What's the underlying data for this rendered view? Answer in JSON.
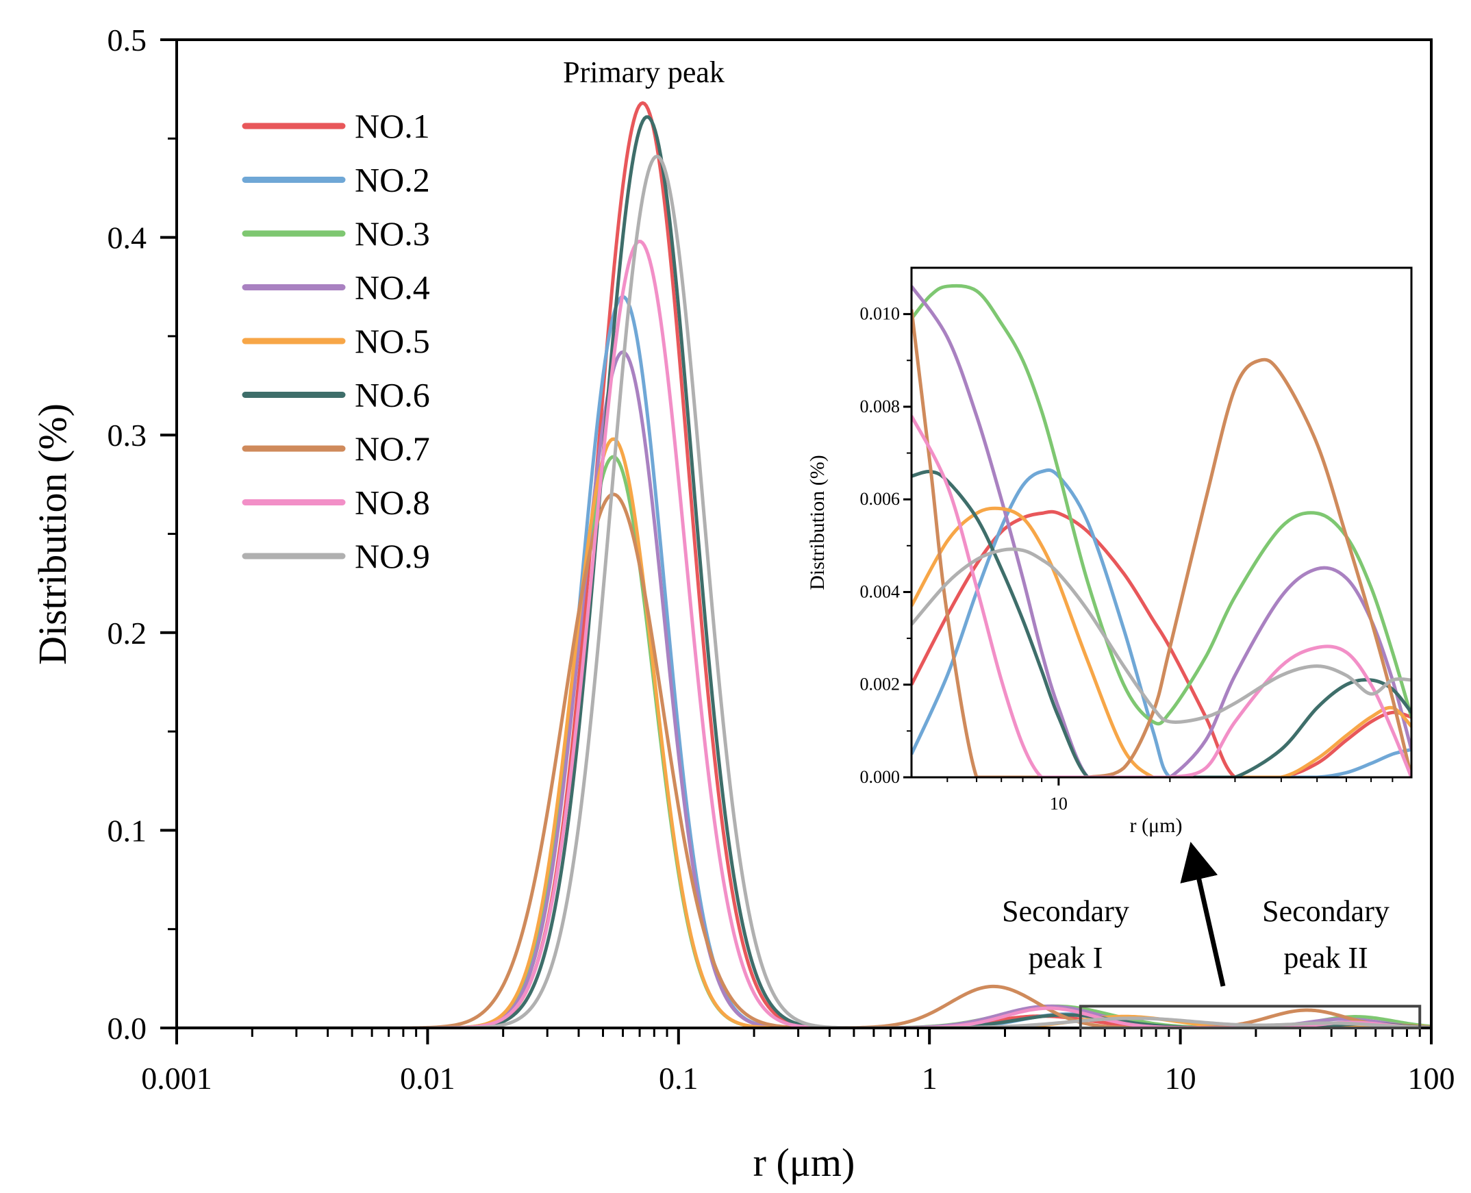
{
  "chart_data": [
    {
      "type": "line",
      "role": "main",
      "title": "",
      "xlabel": "r (μm)",
      "ylabel": "Distribution (%)",
      "xscale": "log",
      "xlim": [
        0.001,
        100
      ],
      "ylim": [
        0,
        0.5
      ],
      "xticks": [
        0.001,
        0.01,
        0.1,
        1,
        10,
        100
      ],
      "xtick_labels": [
        "0.001",
        "0.01",
        "0.1",
        "1",
        "10",
        "100"
      ],
      "yticks": [
        0,
        0.1,
        0.2,
        0.3,
        0.4,
        0.5
      ],
      "ytick_labels": [
        "0.0",
        "0.1",
        "0.2",
        "0.3",
        "0.4",
        "0.5"
      ],
      "grid": false,
      "legend_position": "top-left",
      "annotations": [
        {
          "text": "Primary peak"
        },
        {
          "text": "Secondary",
          "text2": "peak I"
        },
        {
          "text": "Secondary",
          "text2": "peak II"
        }
      ],
      "zoom_box": {
        "x": [
          4,
          90
        ],
        "y": [
          0,
          0.011
        ]
      },
      "series": [
        {
          "name": "NO.1",
          "color": "#e8575a",
          "peaks": [
            {
              "mu": 0.072,
              "sigma": 0.42,
              "amp": 0.468
            },
            {
              "mu": 2.8,
              "sigma": 0.45,
              "amp": 0.006
            },
            {
              "mu": 60,
              "sigma": 0.3,
              "amp": 0.0015
            }
          ]
        },
        {
          "name": "NO.2",
          "color": "#6fa7d6",
          "peaks": [
            {
              "mu": 0.06,
              "sigma": 0.38,
              "amp": 0.37
            },
            {
              "mu": 3.5,
              "sigma": 0.4,
              "amp": 0.007
            },
            {
              "mu": 85,
              "sigma": 0.3,
              "amp": 0.001
            }
          ]
        },
        {
          "name": "NO.3",
          "color": "#7ec771",
          "peaks": [
            {
              "mu": 0.055,
              "sigma": 0.37,
              "amp": 0.289
            },
            {
              "mu": 3.2,
              "sigma": 0.5,
              "amp": 0.011
            },
            {
              "mu": 50,
              "sigma": 0.35,
              "amp": 0.0057
            }
          ]
        },
        {
          "name": "NO.4",
          "color": "#a981c1",
          "peaks": [
            {
              "mu": 0.06,
              "sigma": 0.38,
              "amp": 0.342
            },
            {
              "mu": 3.0,
              "sigma": 0.45,
              "amp": 0.011
            },
            {
              "mu": 45,
              "sigma": 0.35,
              "amp": 0.0045
            }
          ]
        },
        {
          "name": "NO.5",
          "color": "#f7a647",
          "peaks": [
            {
              "mu": 0.055,
              "sigma": 0.37,
              "amp": 0.298
            },
            {
              "mu": 6.0,
              "sigma": 0.45,
              "amp": 0.0058
            },
            {
              "mu": 65,
              "sigma": 0.3,
              "amp": 0.0015
            }
          ]
        },
        {
          "name": "NO.6",
          "color": "#3e6e6a",
          "peaks": [
            {
              "mu": 0.075,
              "sigma": 0.42,
              "amp": 0.461
            },
            {
              "mu": 3.5,
              "sigma": 0.45,
              "amp": 0.0066
            },
            {
              "mu": 55,
              "sigma": 0.3,
              "amp": 0.0021
            }
          ]
        },
        {
          "name": "NO.7",
          "color": "#cf8a5b",
          "peaks": [
            {
              "mu": 0.055,
              "sigma": 0.45,
              "amp": 0.27
            },
            {
              "mu": 1.8,
              "sigma": 0.4,
              "amp": 0.021
            },
            {
              "mu": 32,
              "sigma": 0.35,
              "amp": 0.009
            }
          ]
        },
        {
          "name": "NO.8",
          "color": "#f28fc7",
          "peaks": [
            {
              "mu": 0.07,
              "sigma": 0.42,
              "amp": 0.398
            },
            {
              "mu": 3.0,
              "sigma": 0.4,
              "amp": 0.01
            },
            {
              "mu": 48,
              "sigma": 0.3,
              "amp": 0.0028
            }
          ]
        },
        {
          "name": "NO.9",
          "color": "#b0b0b0",
          "peaks": [
            {
              "mu": 0.082,
              "sigma": 0.42,
              "amp": 0.441
            },
            {
              "mu": 6.5,
              "sigma": 0.6,
              "amp": 0.0049
            },
            {
              "mu": 40,
              "sigma": 0.4,
              "amp": 0.0024
            }
          ]
        }
      ]
    },
    {
      "type": "line",
      "role": "inset",
      "title": "",
      "xlabel": "r (μm)",
      "ylabel": "Distribution (%)",
      "xscale": "log",
      "xlim": [
        4,
        90
      ],
      "ylim": [
        0,
        0.011
      ],
      "xticks": [
        10
      ],
      "xtick_labels": [
        "10"
      ],
      "yticks": [
        0,
        0.002,
        0.004,
        0.006,
        0.008,
        0.01
      ],
      "ytick_labels": [
        "0.000",
        "0.002",
        "0.004",
        "0.006",
        "0.008",
        "0.010"
      ],
      "series": [
        {
          "name": "NO.1",
          "color": "#e8575a",
          "x": [
            4,
            5,
            6,
            7,
            8,
            9,
            10,
            12,
            15,
            18,
            20,
            25,
            30,
            40,
            50,
            60,
            70,
            80,
            90
          ],
          "y": [
            0.002,
            0.0035,
            0.0046,
            0.0053,
            0.0056,
            0.0057,
            0.0057,
            0.0053,
            0.0044,
            0.0034,
            0.0028,
            0.0013,
            0.0,
            0.0,
            0.0003,
            0.0008,
            0.0012,
            0.0014,
            0.0013
          ]
        },
        {
          "name": "NO.2",
          "color": "#6fa7d6",
          "x": [
            4,
            5,
            6,
            7,
            8,
            9,
            10,
            12,
            15,
            18,
            20,
            25,
            30,
            40,
            50,
            60,
            70,
            80,
            90
          ],
          "y": [
            0.0005,
            0.0022,
            0.004,
            0.0054,
            0.0063,
            0.0066,
            0.0065,
            0.0055,
            0.0032,
            0.001,
            0.0,
            0.0,
            0.0,
            0.0,
            0.0,
            0.0001,
            0.0003,
            0.0005,
            0.0006
          ]
        },
        {
          "name": "NO.3",
          "color": "#7ec771",
          "x": [
            4,
            4.5,
            5,
            6,
            7,
            8,
            9,
            10,
            12,
            15,
            18,
            20,
            25,
            30,
            40,
            50,
            60,
            70,
            80,
            90
          ],
          "y": [
            0.0099,
            0.0104,
            0.0106,
            0.0105,
            0.0098,
            0.009,
            0.0079,
            0.0066,
            0.0042,
            0.002,
            0.0012,
            0.0014,
            0.0026,
            0.0039,
            0.0054,
            0.0057,
            0.0052,
            0.0041,
            0.0027,
            0.0013
          ]
        },
        {
          "name": "NO.4",
          "color": "#a981c1",
          "x": [
            4,
            5,
            6,
            7,
            8,
            9,
            10,
            12,
            15,
            18,
            20,
            25,
            30,
            40,
            50,
            60,
            70,
            80,
            90
          ],
          "y": [
            0.0106,
            0.0095,
            0.0078,
            0.006,
            0.0043,
            0.0027,
            0.0015,
            0.0,
            0.0,
            0.0,
            0.0,
            0.0008,
            0.0022,
            0.0039,
            0.0045,
            0.0043,
            0.0034,
            0.0021,
            0.0006
          ]
        },
        {
          "name": "NO.5",
          "color": "#f7a647",
          "x": [
            4,
            5,
            6,
            7,
            8,
            9,
            10,
            12,
            15,
            18,
            20,
            25,
            30,
            40,
            50,
            60,
            70,
            80,
            90
          ],
          "y": [
            0.0037,
            0.0051,
            0.0057,
            0.0058,
            0.0056,
            0.005,
            0.0042,
            0.0025,
            0.0006,
            0.0,
            0.0,
            0.0,
            0.0,
            0.0,
            0.0004,
            0.0009,
            0.0013,
            0.0015,
            0.0011
          ]
        },
        {
          "name": "NO.6",
          "color": "#3e6e6a",
          "x": [
            4,
            4.5,
            5,
            6,
            7,
            8,
            9,
            10,
            12,
            15,
            18,
            20,
            25,
            30,
            40,
            50,
            60,
            70,
            80,
            90
          ],
          "y": [
            0.0065,
            0.0066,
            0.0064,
            0.0056,
            0.0045,
            0.0034,
            0.0023,
            0.0013,
            0.0,
            0.0,
            0.0,
            0.0,
            0.0,
            0.0,
            0.0006,
            0.0015,
            0.002,
            0.0021,
            0.0019,
            0.0014
          ]
        },
        {
          "name": "NO.7",
          "color": "#cf8a5b",
          "x": [
            4,
            4.5,
            5,
            6,
            7,
            8,
            9,
            10,
            12,
            15,
            18,
            20,
            25,
            30,
            35,
            40,
            50,
            60,
            70,
            80,
            90
          ],
          "y": [
            0.0101,
            0.0067,
            0.0035,
            0.0,
            0.0,
            0.0,
            0.0,
            0.0,
            0.0,
            0.0002,
            0.0014,
            0.0028,
            0.006,
            0.0084,
            0.009,
            0.0087,
            0.0072,
            0.0052,
            0.0034,
            0.0017,
            0.0
          ]
        },
        {
          "name": "NO.8",
          "color": "#f28fc7",
          "x": [
            4,
            5,
            6,
            7,
            8,
            9,
            10,
            12,
            15,
            18,
            20,
            25,
            30,
            40,
            50,
            60,
            70,
            80,
            90
          ],
          "y": [
            0.0078,
            0.0063,
            0.0041,
            0.0021,
            0.0007,
            0.0,
            0.0,
            0.0,
            0.0,
            0.0,
            0.0,
            0.0002,
            0.0012,
            0.0024,
            0.0028,
            0.0027,
            0.002,
            0.001,
            0.0
          ]
        },
        {
          "name": "NO.9",
          "color": "#b0b0b0",
          "x": [
            4,
            5,
            6,
            7,
            8,
            9,
            10,
            12,
            15,
            18,
            20,
            25,
            30,
            40,
            50,
            60,
            70,
            80,
            90
          ],
          "y": [
            0.0033,
            0.0042,
            0.0047,
            0.0049,
            0.0049,
            0.0047,
            0.0044,
            0.0036,
            0.0024,
            0.0015,
            0.0012,
            0.0013,
            0.0016,
            0.0022,
            0.0024,
            0.0022,
            0.0018,
            0.0021,
            0.0021
          ]
        }
      ]
    }
  ]
}
